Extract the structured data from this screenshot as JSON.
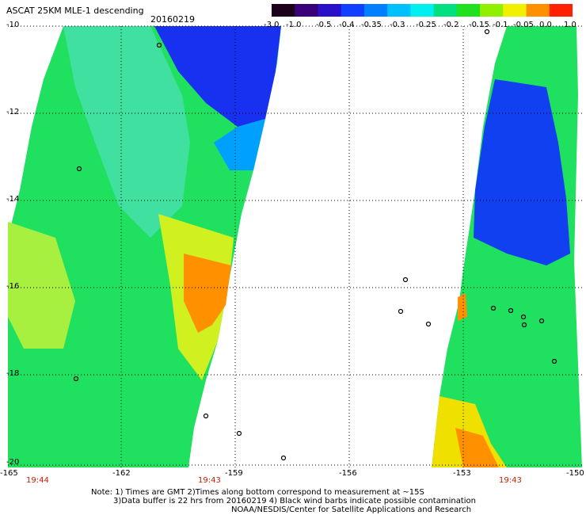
{
  "title": "ASCAT 25KM MLE-1 descending",
  "date": "20160219",
  "colorbar": {
    "labels": [
      "-3.0",
      "-1.0",
      "-0.5",
      "-0.4",
      "-0.35",
      "-0.3",
      "-0.25",
      "-0.2",
      "-0.15",
      "-0.1",
      "-0.05",
      "0.0",
      "1.0"
    ],
    "colors": [
      "#1a001a",
      "#3a007a",
      "#2a10c8",
      "#1040ff",
      "#0080ff",
      "#00c0ff",
      "#00f0f0",
      "#00e080",
      "#20e020",
      "#90f000",
      "#f0f000",
      "#ff9000",
      "#ff2000"
    ]
  },
  "axes": {
    "y_labels": [
      "-10",
      "-12",
      "-14",
      "-16",
      "-18",
      "-20"
    ],
    "x_labels": [
      "-165",
      "-162",
      "-159",
      "-156",
      "-153",
      "-150"
    ]
  },
  "times": [
    "19:44",
    "19:43",
    "19:43"
  ],
  "notes": [
    "Note: 1) Times are GMT 2)Times along bottom correspond to measurement at ~15S",
    "3)Data buffer is 22 hrs from 20160219 4) Black wind barbs indicate possible contamination",
    "NOAA/NESDIS/Center for Satellite Applications and Research"
  ]
}
